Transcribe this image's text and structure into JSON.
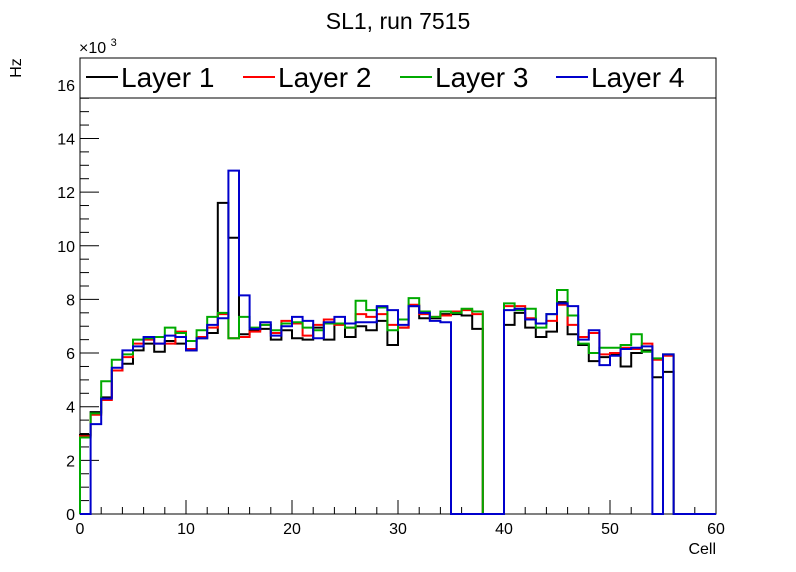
{
  "chart_data": {
    "type": "line",
    "title": "SL1, run 7515",
    "xlabel": "Cell",
    "ylabel": "Hz",
    "y_multiplier_label": "×10",
    "y_multiplier_exponent": "3",
    "xlim": [
      0,
      60
    ],
    "ylim": [
      0,
      17
    ],
    "x_ticks": [
      0,
      10,
      20,
      30,
      40,
      50,
      60
    ],
    "y_ticks": [
      0,
      2,
      4,
      6,
      8,
      10,
      12,
      14,
      16
    ],
    "grid": false,
    "legend_position": "top",
    "bin_width": 1,
    "series": [
      {
        "name": "Layer 1",
        "color": "#000000",
        "values": [
          2.95,
          3.8,
          4.35,
          5.35,
          5.6,
          6.1,
          6.35,
          6.05,
          6.45,
          6.35,
          6.1,
          6.55,
          6.75,
          11.6,
          10.3,
          6.7,
          6.85,
          6.9,
          6.5,
          6.85,
          6.55,
          6.5,
          6.95,
          6.5,
          7.1,
          6.6,
          7.0,
          6.85,
          7.2,
          6.3,
          6.95,
          7.75,
          7.3,
          7.3,
          7.45,
          7.45,
          7.4,
          6.9,
          0,
          0,
          7.05,
          7.5,
          6.95,
          6.6,
          6.8,
          7.9,
          6.7,
          6.3,
          5.7,
          5.85,
          5.95,
          5.5,
          6.0,
          6.1,
          5.1,
          5.3,
          0,
          0,
          0,
          0
        ]
      },
      {
        "name": "Layer 2",
        "color": "#ff0000",
        "values": [
          2.9,
          3.7,
          4.25,
          5.35,
          5.85,
          6.35,
          6.5,
          6.35,
          6.35,
          6.8,
          6.15,
          6.6,
          6.95,
          7.45,
          6.55,
          6.6,
          6.8,
          7.05,
          6.75,
          7.2,
          7.1,
          6.65,
          7.05,
          7.25,
          7.05,
          6.95,
          7.45,
          7.35,
          7.45,
          7.05,
          6.95,
          7.8,
          7.45,
          7.35,
          7.4,
          7.55,
          7.6,
          7.45,
          0,
          0,
          7.75,
          7.75,
          7.3,
          7.1,
          7.2,
          7.8,
          7.05,
          6.6,
          6.75,
          5.95,
          6.0,
          6.2,
          6.15,
          6.35,
          5.75,
          5.9,
          0,
          0,
          0,
          0
        ]
      },
      {
        "name": "Layer 3",
        "color": "#00aa00",
        "values": [
          2.85,
          3.75,
          4.95,
          5.75,
          5.95,
          6.5,
          6.55,
          6.6,
          6.95,
          6.75,
          6.45,
          6.85,
          7.35,
          7.5,
          6.55,
          7.35,
          6.95,
          7.05,
          6.85,
          7.1,
          7.15,
          6.95,
          6.85,
          7.1,
          7.1,
          6.95,
          7.95,
          7.6,
          7.7,
          6.85,
          7.25,
          8.05,
          7.55,
          7.35,
          7.55,
          7.5,
          7.65,
          7.55,
          0,
          0,
          7.85,
          7.6,
          7.65,
          6.95,
          7.45,
          8.35,
          7.4,
          6.35,
          6.0,
          6.2,
          6.2,
          6.3,
          6.7,
          6.05,
          5.8,
          5.95,
          0,
          0,
          0,
          0
        ]
      },
      {
        "name": "Layer 4",
        "color": "#0000cc",
        "values": [
          0,
          3.35,
          4.3,
          5.45,
          6.1,
          6.25,
          6.6,
          6.35,
          6.65,
          6.6,
          6.1,
          6.55,
          7.05,
          7.3,
          12.8,
          8.15,
          6.9,
          7.15,
          6.65,
          7.0,
          7.35,
          7.2,
          6.55,
          7.15,
          7.35,
          7.1,
          7.15,
          7.15,
          7.75,
          7.6,
          7.05,
          7.75,
          7.5,
          7.2,
          7.15,
          0,
          0,
          0,
          0,
          0,
          7.6,
          7.65,
          7.25,
          7.1,
          7.45,
          7.85,
          7.75,
          6.5,
          6.85,
          5.55,
          5.9,
          6.15,
          6.2,
          6.25,
          0,
          5.95,
          0,
          0,
          0,
          0
        ]
      }
    ]
  }
}
